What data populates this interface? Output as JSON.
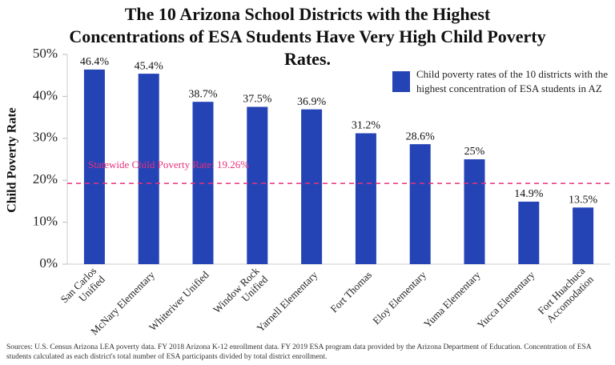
{
  "chart_data": {
    "type": "bar",
    "title": "The 10 Arizona School Districts with the Highest Concentrations of ESA Students Have Very High Child Poverty Rates.",
    "y_label": "Child Poverty Rate",
    "categories": [
      "San Carlos Unified",
      "McNary Elementary",
      "Whiteriver Unified",
      "Window Rock Unified",
      "Yarnell Elementary",
      "Fort Thomas",
      "Eloy Elementary",
      "Yuma  Elementary",
      "Yucca  Elementary",
      "Fort Huachuca Accomodation"
    ],
    "series": [
      {
        "name": "Child poverty rates of the 10 districts with the highest concentration of ESA students in AZ",
        "color": "#2443b5",
        "values": [
          46.4,
          45.4,
          38.7,
          37.5,
          36.9,
          31.2,
          28.6,
          25,
          14.9,
          13.5
        ],
        "value_labels": [
          "46.4%",
          "45.4%",
          "38.7%",
          "37.5%",
          "36.9%",
          "31.2%",
          "28.6%",
          "25%",
          "14.9%",
          "13.5%"
        ]
      }
    ],
    "ylim": [
      0,
      50
    ],
    "yticks": [
      {
        "value": 0,
        "label": "0%"
      },
      {
        "value": 10,
        "label": "10%"
      },
      {
        "value": 20,
        "label": "20%"
      },
      {
        "value": 30,
        "label": "30%"
      },
      {
        "value": 40,
        "label": "40%"
      },
      {
        "value": 50,
        "label": "50%"
      }
    ],
    "reference_line": {
      "value": 19.26,
      "label": "Statewide Child Poverty Rate: 19.26%",
      "color": "#e8317a"
    },
    "source": "Sources: U.S. Census Arizona LEA poverty data. FY 2018 Arizona K-12 enrollment data. FY 2019 ESA program data provided by the Arizona Department of Education. Concentration of ESA students calculated as each district's total number of ESA participants divided by total district enrollment."
  }
}
